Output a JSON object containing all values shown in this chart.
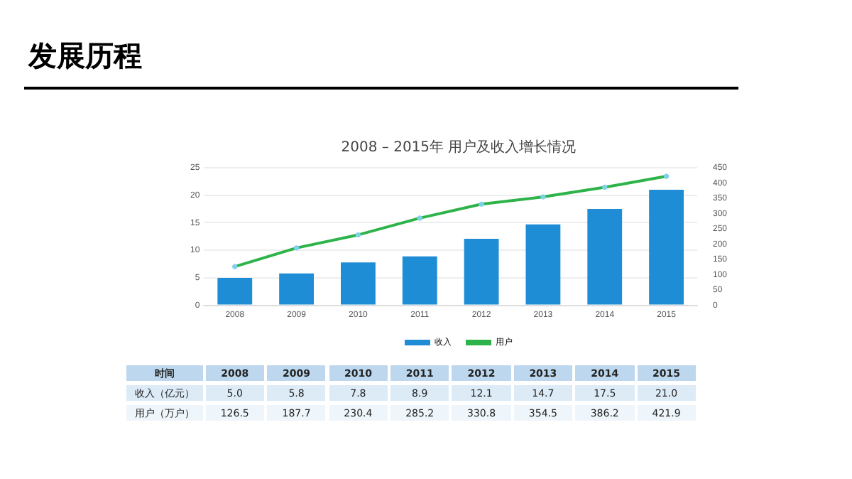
{
  "chart_data": {
    "type": "bar",
    "title": "发展历程",
    "subtitle": "2008 – 2015年 用户及收入增长情况",
    "categories": [
      "2008",
      "2009",
      "2010",
      "2011",
      "2012",
      "2013",
      "2014",
      "2015"
    ],
    "series": [
      {
        "name": "收入",
        "color": "#1f8dd6",
        "values": [
          5.0,
          5.8,
          7.8,
          8.9,
          12.1,
          14.7,
          17.5,
          21.0
        ],
        "value_labels": [
          "5.0",
          "5.8",
          "7.8",
          "8.9",
          "12.1",
          "14.7",
          "17.5",
          "21.0"
        ]
      },
      {
        "name": "用户",
        "type": "line",
        "axis": "y2",
        "color": "#2db34a",
        "values": [
          126.5,
          187.7,
          230.4,
          285.2,
          330.8,
          354.5,
          386.2,
          421.9
        ],
        "value_labels": [
          "126.5",
          "187.7",
          "230.4",
          "285.2",
          "330.8",
          "354.5",
          "386.2",
          "421.9"
        ]
      }
    ],
    "ylim": [
      0,
      25
    ],
    "yticks": [
      0,
      5,
      10,
      15,
      20,
      25
    ],
    "y2lim": [
      0,
      450
    ],
    "y2ticks": [
      0,
      50,
      100,
      150,
      200,
      250,
      300,
      350,
      400,
      450
    ],
    "grid": "y",
    "legend": "bottom",
    "marker": "circle",
    "line_style": "solid",
    "annotations": [
      "时间",
      "收入（亿元）",
      "用户（万户）"
    ]
  }
}
